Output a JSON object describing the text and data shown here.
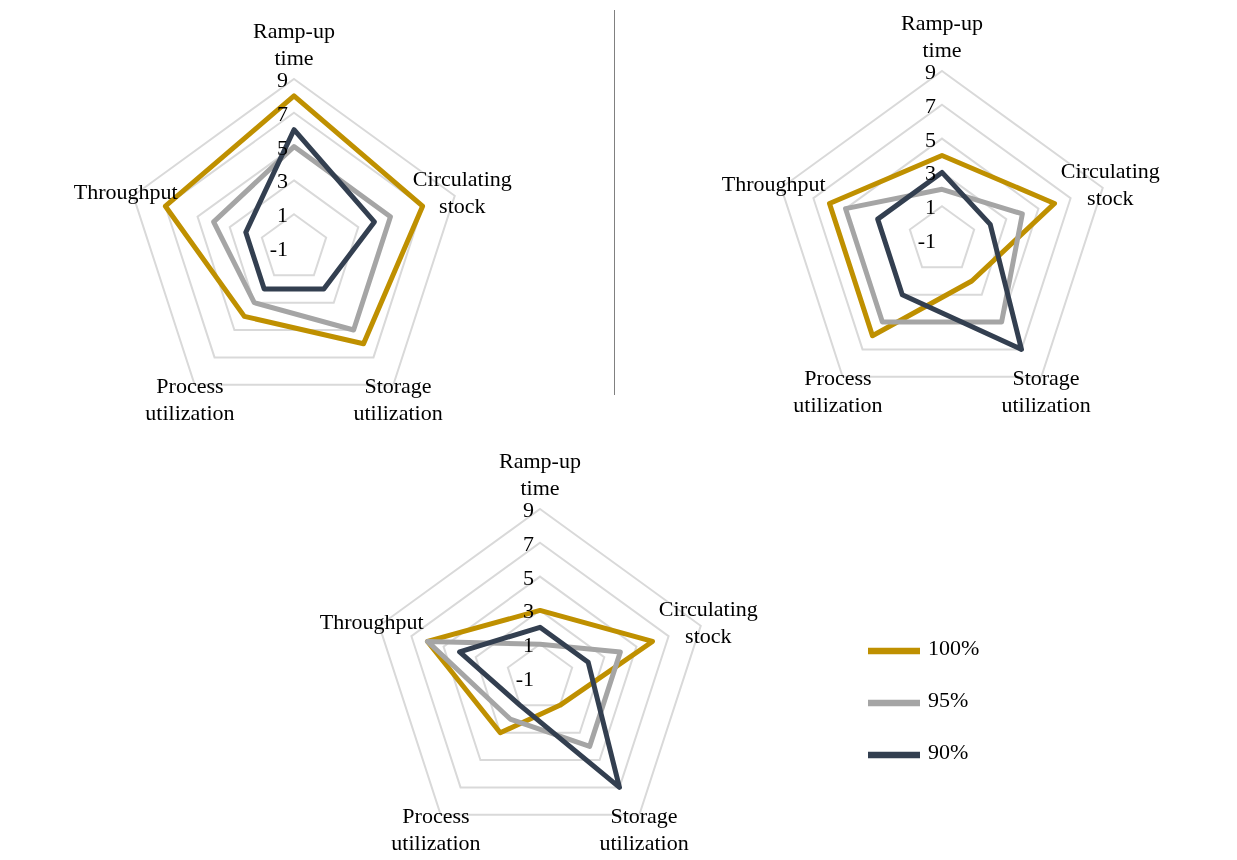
{
  "chart_data": [
    {
      "type": "radar",
      "categories": [
        "Ramp-up time",
        "Circulating stock",
        "Storage utilization",
        "Process utilization",
        "Throughput"
      ],
      "ylim": [
        -1,
        9
      ],
      "yticks": [
        -1,
        1,
        3,
        5,
        7,
        9
      ],
      "grid": true,
      "legend": false,
      "series": [
        {
          "color": "#bf9000",
          "values": [
            8,
            7,
            6,
            4,
            7
          ]
        },
        {
          "color": "#a5a5a5",
          "values": [
            5,
            5,
            5,
            3,
            4
          ]
        },
        {
          "color": "#333f50",
          "values": [
            6,
            4,
            2,
            2,
            2
          ]
        }
      ]
    },
    {
      "type": "radar",
      "categories": [
        "Ramp-up time",
        "Circulating stock",
        "Storage utilization",
        "Process utilization",
        "Throughput"
      ],
      "ylim": [
        -1,
        9
      ],
      "yticks": [
        -1,
        1,
        3,
        5,
        7,
        9
      ],
      "grid": true,
      "legend": false,
      "series": [
        {
          "color": "#bf9000",
          "values": [
            4,
            6,
            2,
            6,
            6
          ]
        },
        {
          "color": "#a5a5a5",
          "values": [
            2,
            4,
            5,
            5,
            5
          ]
        },
        {
          "color": "#333f50",
          "values": [
            3,
            2,
            7,
            3,
            3
          ]
        }
      ]
    },
    {
      "type": "radar",
      "categories": [
        "Ramp-up time",
        "Circulating stock",
        "Storage utilization",
        "Process utilization",
        "Throughput"
      ],
      "ylim": [
        -1,
        9
      ],
      "yticks": [
        -1,
        1,
        3,
        5,
        7,
        9
      ],
      "grid": true,
      "legend": "right",
      "series": [
        {
          "name": "100%",
          "color": "#bf9000",
          "values": [
            3,
            6,
            1,
            3,
            6
          ]
        },
        {
          "name": "95%",
          "color": "#a5a5a5",
          "values": [
            1,
            4,
            4,
            2,
            6
          ]
        },
        {
          "name": "90%",
          "color": "#333f50",
          "values": [
            2,
            2,
            7,
            1,
            4
          ]
        }
      ]
    }
  ]
}
